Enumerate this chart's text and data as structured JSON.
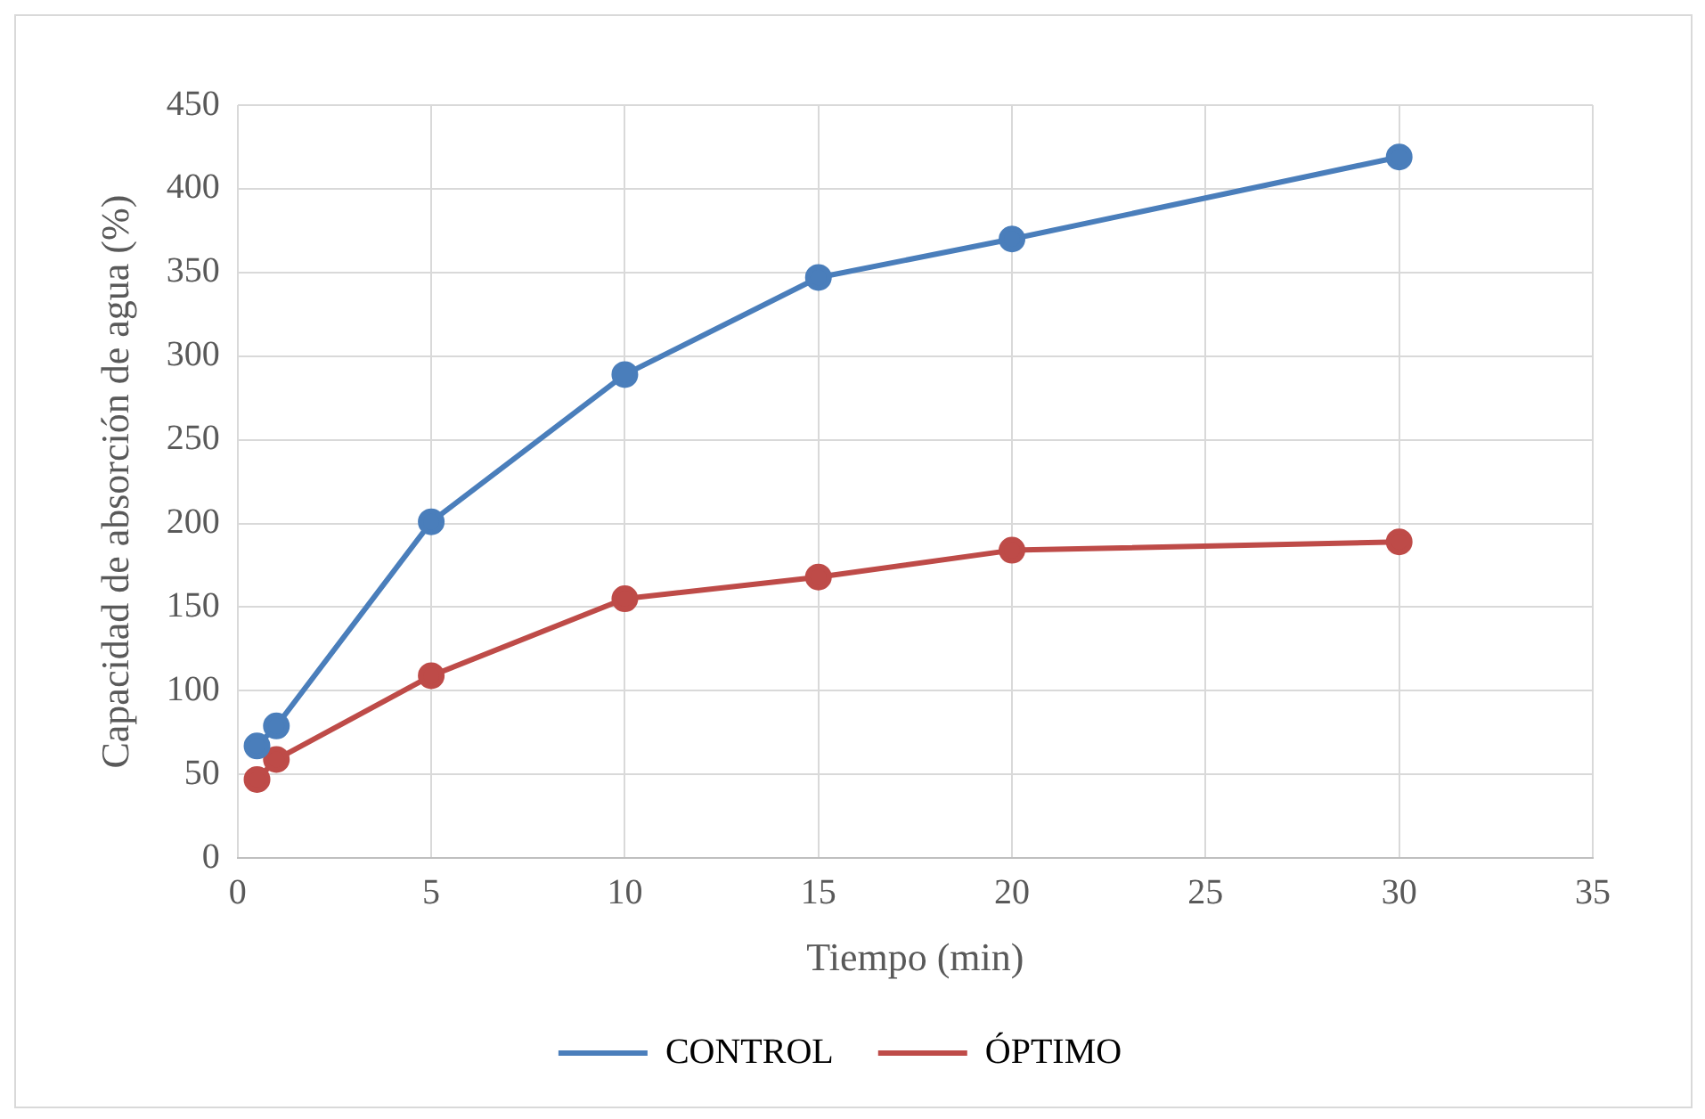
{
  "chart_data": {
    "type": "line",
    "xlabel": "Tiempo (min)",
    "ylabel": "Capacidad de absorción de agua (%)",
    "x": [
      0.5,
      1,
      5,
      10,
      15,
      20,
      30
    ],
    "series": [
      {
        "name": "CONTROL",
        "color": "#4a7ebb",
        "values": [
          67,
          79,
          201,
          289,
          347,
          370,
          419
        ]
      },
      {
        "name": "ÓPTIMO",
        "color": "#be4b48",
        "values": [
          47,
          59,
          109,
          155,
          168,
          184,
          189
        ]
      }
    ],
    "xlim": [
      0,
      35
    ],
    "xticks": [
      0,
      5,
      10,
      15,
      20,
      25,
      30,
      35
    ],
    "ylim": [
      0,
      450
    ],
    "yticks": [
      0,
      50,
      100,
      150,
      200,
      250,
      300,
      350,
      400,
      450
    ],
    "grid": true,
    "legend": "bottom",
    "marker": "circle",
    "line_style": "solid"
  }
}
